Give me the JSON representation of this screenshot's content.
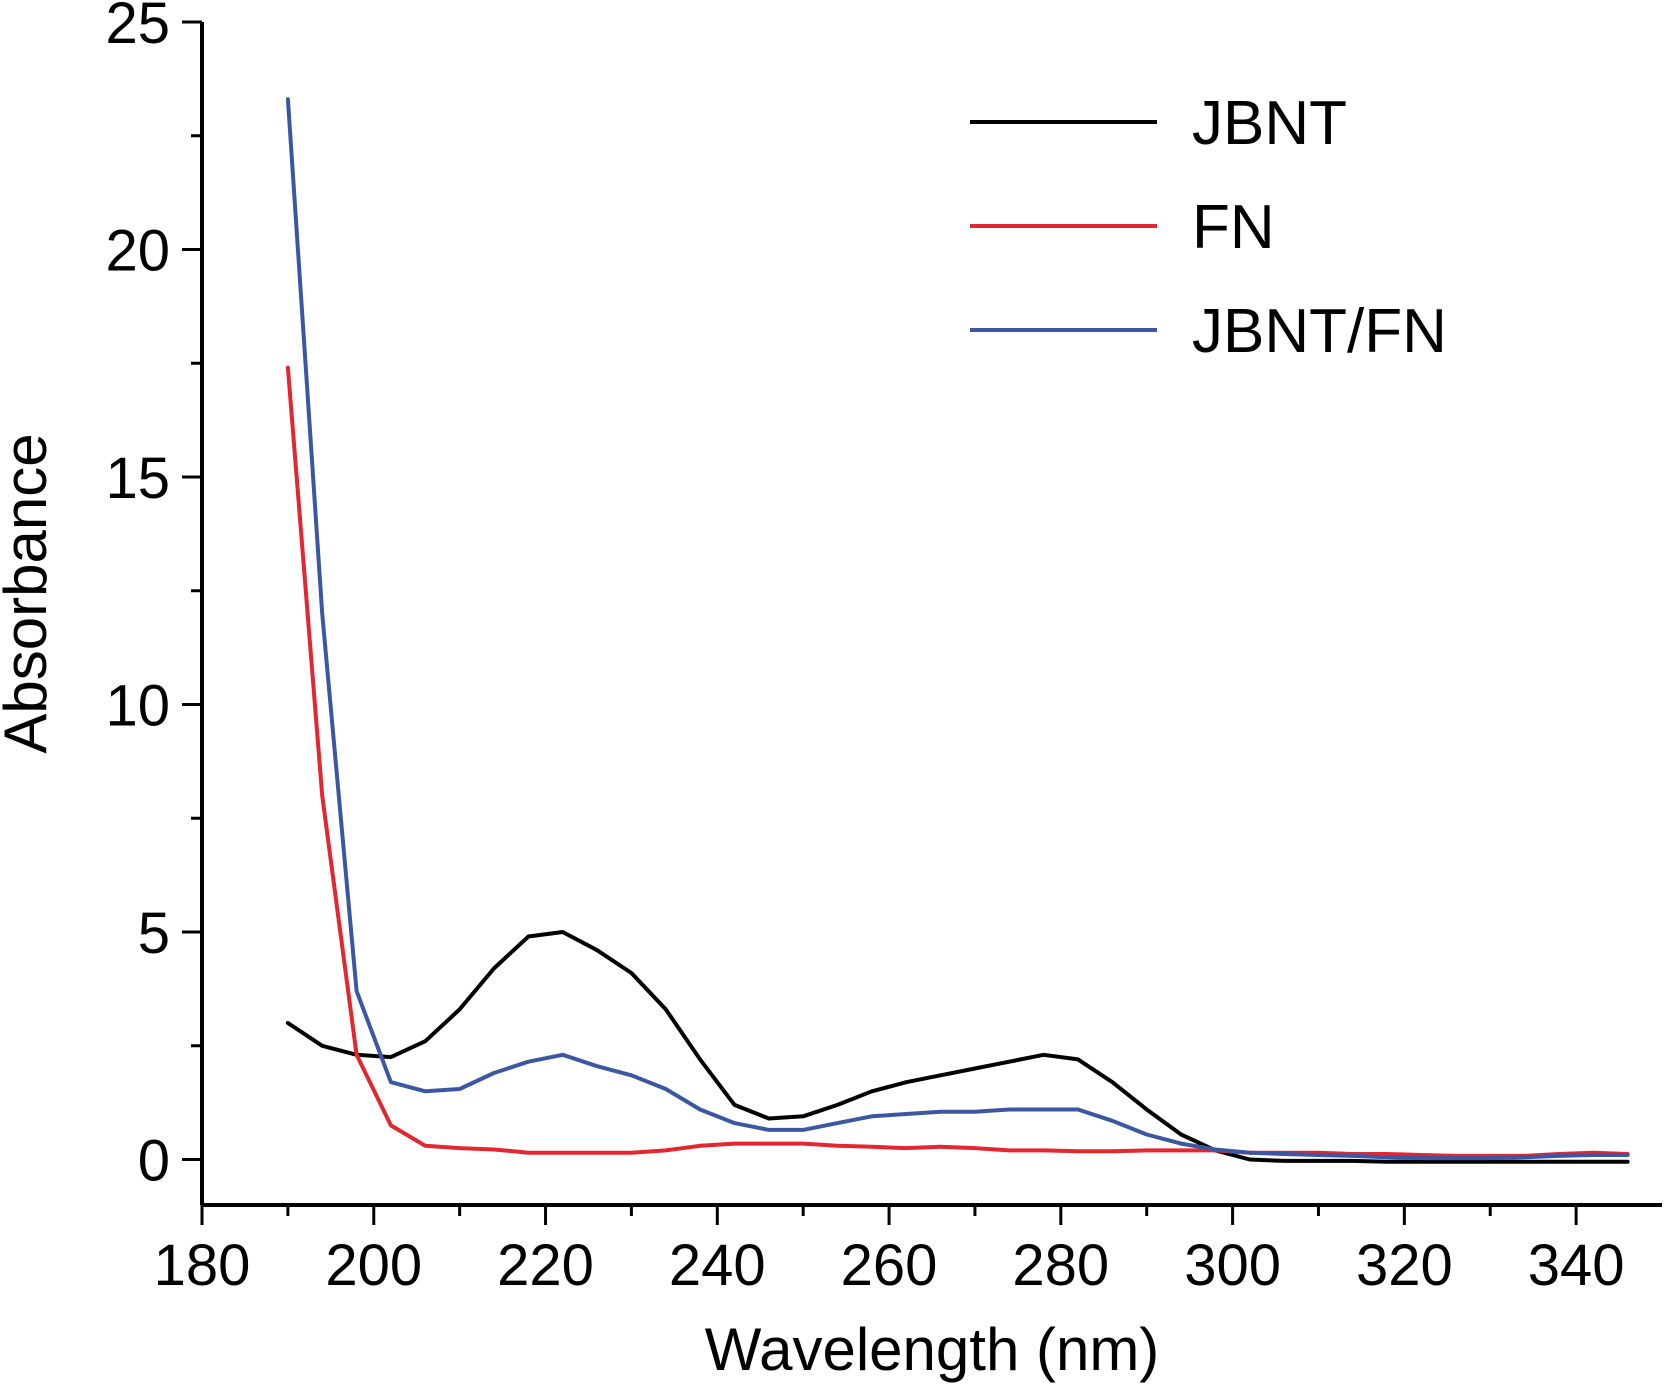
{
  "chart_data": {
    "type": "line",
    "title": "",
    "xlabel": "Wavelength (nm)",
    "ylabel": "Absorbance",
    "xlim": [
      180,
      350
    ],
    "ylim": [
      -1,
      25
    ],
    "x_ticks": [
      180,
      200,
      220,
      240,
      260,
      280,
      300,
      320,
      340
    ],
    "y_ticks": [
      0,
      5,
      10,
      15,
      20,
      25
    ],
    "grid": false,
    "legend_position": "top-right",
    "series": [
      {
        "name": "JBNT",
        "color": "#000000",
        "x": [
          190,
          194,
          198,
          202,
          206,
          210,
          214,
          218,
          222,
          226,
          230,
          234,
          238,
          242,
          246,
          250,
          254,
          258,
          262,
          266,
          270,
          274,
          278,
          282,
          286,
          290,
          294,
          298,
          302,
          306,
          310,
          314,
          318,
          322,
          326,
          330,
          334,
          338,
          342,
          346
        ],
        "y": [
          3.0,
          2.5,
          2.3,
          2.25,
          2.6,
          3.3,
          4.2,
          4.9,
          5.0,
          4.6,
          4.1,
          3.3,
          2.2,
          1.2,
          0.9,
          0.95,
          1.2,
          1.5,
          1.7,
          1.85,
          2.0,
          2.15,
          2.3,
          2.2,
          1.7,
          1.1,
          0.55,
          0.2,
          0.0,
          -0.03,
          -0.03,
          -0.03,
          -0.05,
          -0.05,
          -0.05,
          -0.05,
          -0.05,
          -0.05,
          -0.05,
          -0.05
        ]
      },
      {
        "name": "FN",
        "color": "#e3262f",
        "x": [
          190,
          194,
          198,
          202,
          206,
          210,
          214,
          218,
          222,
          226,
          230,
          234,
          238,
          242,
          246,
          250,
          254,
          258,
          262,
          266,
          270,
          274,
          278,
          282,
          286,
          290,
          294,
          298,
          302,
          306,
          310,
          314,
          318,
          322,
          326,
          330,
          334,
          338,
          342,
          346
        ],
        "y": [
          17.4,
          8.0,
          2.3,
          0.75,
          0.3,
          0.25,
          0.22,
          0.15,
          0.15,
          0.15,
          0.15,
          0.2,
          0.3,
          0.35,
          0.35,
          0.35,
          0.3,
          0.28,
          0.25,
          0.28,
          0.25,
          0.2,
          0.2,
          0.18,
          0.18,
          0.2,
          0.2,
          0.2,
          0.15,
          0.15,
          0.15,
          0.12,
          0.12,
          0.1,
          0.08,
          0.08,
          0.08,
          0.12,
          0.15,
          0.12
        ]
      },
      {
        "name": "JBNT/FN",
        "color": "#3b57a3",
        "x": [
          190,
          194,
          198,
          202,
          206,
          210,
          214,
          218,
          222,
          226,
          230,
          234,
          238,
          242,
          246,
          250,
          254,
          258,
          262,
          266,
          270,
          274,
          278,
          282,
          286,
          290,
          294,
          298,
          302,
          306,
          310,
          314,
          318,
          322,
          326,
          330,
          334,
          338,
          342,
          346
        ],
        "y": [
          23.3,
          12.0,
          3.7,
          1.7,
          1.5,
          1.55,
          1.9,
          2.15,
          2.3,
          2.05,
          1.85,
          1.55,
          1.1,
          0.8,
          0.65,
          0.65,
          0.8,
          0.95,
          1.0,
          1.05,
          1.05,
          1.1,
          1.1,
          1.1,
          0.85,
          0.55,
          0.35,
          0.22,
          0.15,
          0.12,
          0.1,
          0.08,
          0.05,
          0.03,
          0.03,
          0.03,
          0.05,
          0.08,
          0.1,
          0.1
        ]
      }
    ]
  }
}
